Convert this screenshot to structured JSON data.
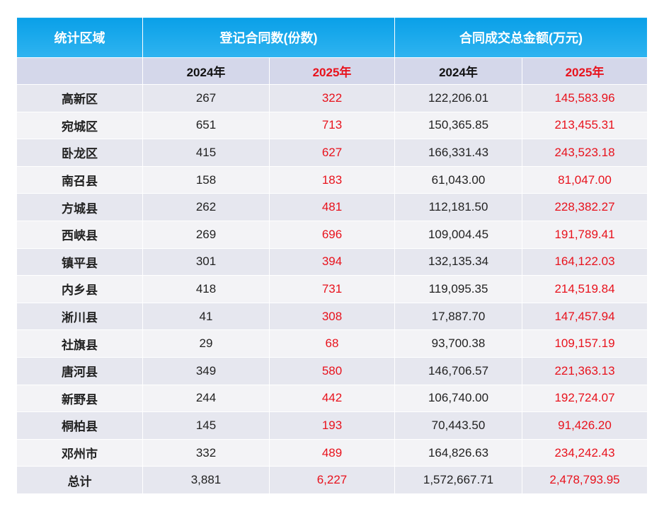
{
  "header": {
    "region": "统计区域",
    "contracts": "登记合同数(份数)",
    "amount": "合同成交总金额(万元)"
  },
  "subheader": [
    "2024年",
    "2025年",
    "2024年",
    "2025年"
  ],
  "rows": [
    [
      "高新区",
      "267",
      "322",
      "122,206.01",
      "145,583.96"
    ],
    [
      "宛城区",
      "651",
      "713",
      "150,365.85",
      "213,455.31"
    ],
    [
      "卧龙区",
      "415",
      "627",
      "166,331.43",
      "243,523.18"
    ],
    [
      "南召县",
      "158",
      "183",
      "61,043.00",
      "81,047.00"
    ],
    [
      "方城县",
      "262",
      "481",
      "112,181.50",
      "228,382.27"
    ],
    [
      "西峡县",
      "269",
      "696",
      "109,004.45",
      "191,789.41"
    ],
    [
      "镇平县",
      "301",
      "394",
      "132,135.34",
      "164,122.03"
    ],
    [
      "内乡县",
      "418",
      "731",
      "119,095.35",
      "214,519.84"
    ],
    [
      "淅川县",
      "41",
      "308",
      "17,887.70",
      "147,457.94"
    ],
    [
      "社旗县",
      "29",
      "68",
      "93,700.38",
      "109,157.19"
    ],
    [
      "唐河县",
      "349",
      "580",
      "146,706.57",
      "221,363.13"
    ],
    [
      "新野县",
      "244",
      "442",
      "106,740.00",
      "192,724.07"
    ],
    [
      "桐柏县",
      "145",
      "193",
      "70,443.50",
      "91,426.20"
    ],
    [
      "邓州市",
      "332",
      "489",
      "164,826.63",
      "234,242.43"
    ],
    [
      "总计",
      "3,881",
      "6,227",
      "1,572,667.71",
      "2,478,793.95"
    ]
  ]
}
